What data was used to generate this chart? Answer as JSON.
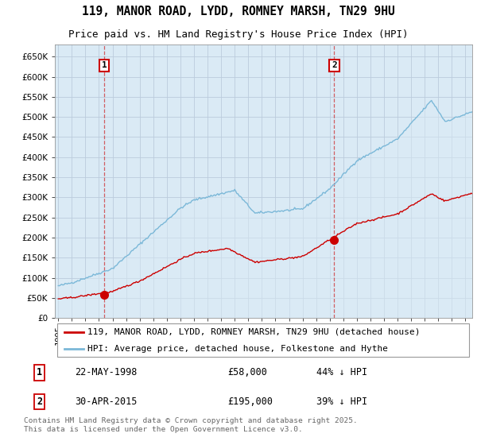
{
  "title": "119, MANOR ROAD, LYDD, ROMNEY MARSH, TN29 9HU",
  "subtitle": "Price paid vs. HM Land Registry's House Price Index (HPI)",
  "ylim": [
    0,
    680000
  ],
  "yticks": [
    0,
    50000,
    100000,
    150000,
    200000,
    250000,
    300000,
    350000,
    400000,
    450000,
    500000,
    550000,
    600000,
    650000
  ],
  "xlim_start": 1994.75,
  "xlim_end": 2025.5,
  "sale1_x": 1998.388,
  "sale1_y": 58000,
  "sale1_label": "1",
  "sale1_date": "22-MAY-1998",
  "sale1_price": "£58,000",
  "sale1_hpi": "44% ↓ HPI",
  "sale2_x": 2015.33,
  "sale2_y": 195000,
  "sale2_label": "2",
  "sale2_date": "30-APR-2015",
  "sale2_price": "£195,000",
  "sale2_hpi": "39% ↓ HPI",
  "hpi_color": "#7bb8d8",
  "hpi_fill_color": "#daeaf5",
  "sale_color": "#cc0000",
  "legend_label_sale": "119, MANOR ROAD, LYDD, ROMNEY MARSH, TN29 9HU (detached house)",
  "legend_label_hpi": "HPI: Average price, detached house, Folkestone and Hythe",
  "footnote": "Contains HM Land Registry data © Crown copyright and database right 2025.\nThis data is licensed under the Open Government Licence v3.0.",
  "background_color": "#ffffff",
  "chart_bg_color": "#daeaf5",
  "grid_color": "#bbccdd",
  "title_fontsize": 10.5,
  "subtitle_fontsize": 9,
  "tick_fontsize": 7.5,
  "legend_fontsize": 8
}
